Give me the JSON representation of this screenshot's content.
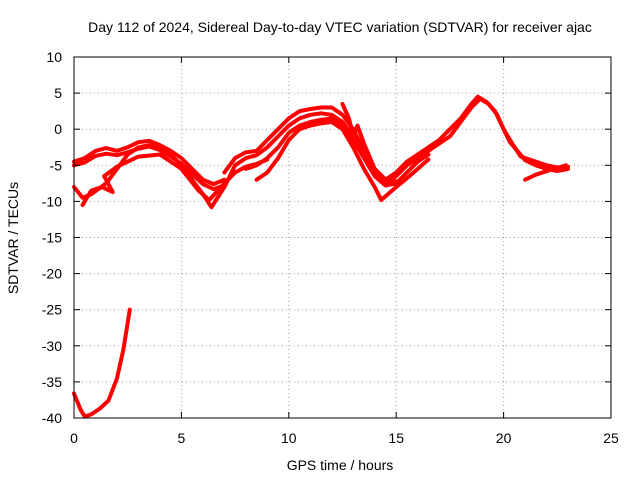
{
  "chart_data": {
    "type": "line",
    "title": "Day 112 of 2024, Sidereal Day-to-day VTEC variation (SDTVAR) for receiver ajac",
    "xlabel": "GPS time / hours",
    "ylabel": "SDTVAR / TECUs",
    "xlim": [
      0,
      25
    ],
    "ylim": [
      -40,
      10
    ],
    "xticks": [
      0,
      5,
      10,
      15,
      20,
      25
    ],
    "yticks": [
      10,
      5,
      0,
      -5,
      -10,
      -15,
      -20,
      -25,
      -30,
      -35,
      -40
    ],
    "grid": true,
    "series_color": "#ff0000",
    "series": [
      {
        "name": "trace-1",
        "points": [
          [
            0.0,
            -4.5
          ],
          [
            0.5,
            -4.0
          ],
          [
            1.0,
            -3.0
          ],
          [
            1.5,
            -2.6
          ],
          [
            2.0,
            -3.0
          ],
          [
            2.5,
            -2.5
          ],
          [
            3.0,
            -1.8
          ],
          [
            3.5,
            -1.6
          ],
          [
            4.0,
            -2.2
          ],
          [
            4.5,
            -3.0
          ],
          [
            5.0,
            -4.0
          ],
          [
            5.5,
            -5.5
          ],
          [
            6.0,
            -7.0
          ],
          [
            6.5,
            -7.6
          ],
          [
            7.0,
            -7.0
          ]
        ]
      },
      {
        "name": "trace-2",
        "points": [
          [
            0.0,
            -5.0
          ],
          [
            0.5,
            -4.6
          ],
          [
            1.0,
            -3.7
          ],
          [
            1.5,
            -3.4
          ],
          [
            2.0,
            -3.6
          ],
          [
            2.5,
            -3.2
          ],
          [
            3.0,
            -2.7
          ],
          [
            3.5,
            -2.4
          ],
          [
            4.0,
            -2.9
          ],
          [
            4.5,
            -3.8
          ],
          [
            5.0,
            -4.8
          ],
          [
            5.5,
            -6.2
          ],
          [
            6.0,
            -7.6
          ],
          [
            6.5,
            -8.3
          ],
          [
            7.0,
            -7.8
          ]
        ]
      },
      {
        "name": "trace-3",
        "points": [
          [
            0.0,
            -8.0
          ],
          [
            0.4,
            -9.5
          ],
          [
            0.8,
            -9.0
          ],
          [
            1.5,
            -7.5
          ],
          [
            2.0,
            -5.5
          ],
          [
            2.5,
            -3.5
          ],
          [
            3.0,
            -2.5
          ],
          [
            3.5,
            -2.2
          ],
          [
            4.0,
            -2.5
          ],
          [
            4.5,
            -3.5
          ],
          [
            5.0,
            -5.0
          ],
          [
            5.5,
            -7.0
          ],
          [
            6.0,
            -9.0
          ],
          [
            6.4,
            -10.8
          ],
          [
            7.0,
            -8.0
          ],
          [
            7.5,
            -5.0
          ]
        ]
      },
      {
        "name": "trace-4",
        "points": [
          [
            0.4,
            -10.5
          ],
          [
            0.8,
            -8.5
          ],
          [
            1.3,
            -8.0
          ],
          [
            1.8,
            -8.7
          ],
          [
            1.4,
            -6.5
          ],
          [
            2.0,
            -5.2
          ],
          [
            3.0,
            -3.8
          ],
          [
            4.0,
            -3.5
          ],
          [
            5.0,
            -5.5
          ],
          [
            5.8,
            -8.5
          ],
          [
            6.3,
            -9.8
          ],
          [
            7.0,
            -7.5
          ],
          [
            7.5,
            -6.0
          ],
          [
            8.0,
            -5.2
          ],
          [
            8.5,
            -4.8
          ],
          [
            9.0,
            -4.2
          ]
        ]
      },
      {
        "name": "trace-5",
        "points": [
          [
            7.0,
            -6.0
          ],
          [
            7.5,
            -4.0
          ],
          [
            8.0,
            -3.2
          ],
          [
            8.5,
            -3.0
          ],
          [
            9.0,
            -1.5
          ],
          [
            9.5,
            0.0
          ],
          [
            10.0,
            1.5
          ],
          [
            10.5,
            2.5
          ],
          [
            11.0,
            2.8
          ],
          [
            11.5,
            3.0
          ],
          [
            12.0,
            3.0
          ],
          [
            12.5,
            2.0
          ],
          [
            13.0,
            0.0
          ],
          [
            13.5,
            -3.0
          ],
          [
            14.0,
            -5.5
          ],
          [
            14.5,
            -7.0
          ],
          [
            15.0,
            -7.2
          ]
        ]
      },
      {
        "name": "trace-6",
        "points": [
          [
            7.5,
            -5.0
          ],
          [
            8.0,
            -4.0
          ],
          [
            8.5,
            -3.6
          ],
          [
            9.0,
            -2.5
          ],
          [
            9.5,
            -1.0
          ],
          [
            10.0,
            0.5
          ],
          [
            10.5,
            1.5
          ],
          [
            11.0,
            2.0
          ],
          [
            11.5,
            2.2
          ],
          [
            12.0,
            2.0
          ],
          [
            12.5,
            1.0
          ],
          [
            13.0,
            -1.0
          ],
          [
            13.5,
            -3.5
          ],
          [
            14.0,
            -6.0
          ],
          [
            14.5,
            -7.5
          ],
          [
            15.0,
            -7.6
          ]
        ]
      },
      {
        "name": "trace-7",
        "points": [
          [
            8.0,
            -5.5
          ],
          [
            8.5,
            -5.0
          ],
          [
            9.0,
            -4.0
          ],
          [
            9.5,
            -2.5
          ],
          [
            10.0,
            -0.5
          ],
          [
            10.5,
            0.5
          ],
          [
            11.0,
            1.0
          ],
          [
            11.5,
            1.3
          ],
          [
            12.0,
            1.5
          ],
          [
            12.5,
            0.5
          ],
          [
            13.0,
            -1.5
          ],
          [
            13.5,
            -4.0
          ],
          [
            14.0,
            -6.5
          ],
          [
            14.5,
            -7.8
          ],
          [
            15.0,
            -7.5
          ],
          [
            15.5,
            -6.0
          ],
          [
            16.0,
            -4.5
          ],
          [
            16.5,
            -3.5
          ]
        ]
      },
      {
        "name": "trace-8",
        "points": [
          [
            8.5,
            -7.0
          ],
          [
            9.0,
            -6.0
          ],
          [
            9.5,
            -4.0
          ],
          [
            10.0,
            -1.5
          ],
          [
            10.5,
            0.0
          ],
          [
            11.0,
            0.5
          ],
          [
            11.5,
            0.8
          ],
          [
            12.0,
            1.0
          ],
          [
            12.5,
            0.0
          ],
          [
            13.0,
            -2.5
          ],
          [
            13.5,
            -5.5
          ],
          [
            14.0,
            -8.0
          ],
          [
            14.3,
            -9.8
          ],
          [
            15.0,
            -8.0
          ],
          [
            15.5,
            -6.8
          ],
          [
            16.0,
            -5.5
          ],
          [
            16.5,
            -4.2
          ]
        ]
      },
      {
        "name": "trace-9",
        "points": [
          [
            12.5,
            3.5
          ],
          [
            12.8,
            1.5
          ],
          [
            13.0,
            -1.0
          ],
          [
            13.2,
            0.5
          ],
          [
            13.5,
            -2.0
          ],
          [
            14.0,
            -5.5
          ],
          [
            14.5,
            -7.0
          ],
          [
            15.0,
            -6.0
          ],
          [
            15.5,
            -4.5
          ],
          [
            16.0,
            -3.5
          ],
          [
            16.5,
            -2.5
          ],
          [
            17.0,
            -1.5
          ],
          [
            17.5,
            0.0
          ],
          [
            18.0,
            1.5
          ],
          [
            18.5,
            3.5
          ],
          [
            18.8,
            4.5
          ],
          [
            19.2,
            3.8
          ],
          [
            19.6,
            2.5
          ],
          [
            20.0,
            0.0
          ],
          [
            20.4,
            -2.0
          ],
          [
            20.8,
            -3.8
          ],
          [
            21.5,
            -4.5
          ],
          [
            22.0,
            -5.0
          ],
          [
            22.5,
            -5.3
          ],
          [
            23.0,
            -5.2
          ]
        ]
      },
      {
        "name": "trace-10",
        "points": [
          [
            14.5,
            -7.5
          ],
          [
            15.0,
            -6.5
          ],
          [
            15.5,
            -5.0
          ],
          [
            16.0,
            -4.0
          ],
          [
            16.5,
            -3.0
          ],
          [
            17.0,
            -2.0
          ],
          [
            17.5,
            -1.0
          ],
          [
            18.0,
            1.0
          ],
          [
            18.5,
            3.0
          ],
          [
            18.9,
            4.2
          ],
          [
            19.3,
            3.5
          ],
          [
            19.7,
            2.0
          ],
          [
            20.0,
            0.0
          ],
          [
            20.3,
            -1.8
          ],
          [
            20.7,
            -3.2
          ],
          [
            21.0,
            -4.3
          ],
          [
            21.5,
            -5.0
          ],
          [
            22.0,
            -5.5
          ],
          [
            22.5,
            -5.8
          ],
          [
            23.0,
            -5.5
          ]
        ]
      },
      {
        "name": "trace-11",
        "points": [
          [
            21.0,
            -7.0
          ],
          [
            21.5,
            -6.3
          ],
          [
            22.0,
            -5.8
          ],
          [
            22.5,
            -5.4
          ],
          [
            22.9,
            -5.0
          ]
        ]
      },
      {
        "name": "trace-12",
        "points": [
          [
            0.0,
            -36.6
          ],
          [
            0.3,
            -38.8
          ],
          [
            0.5,
            -39.8
          ],
          [
            0.8,
            -39.5
          ],
          [
            1.2,
            -38.7
          ],
          [
            1.6,
            -37.6
          ],
          [
            2.0,
            -34.5
          ],
          [
            2.3,
            -30.5
          ],
          [
            2.6,
            -25.0
          ]
        ]
      }
    ]
  }
}
